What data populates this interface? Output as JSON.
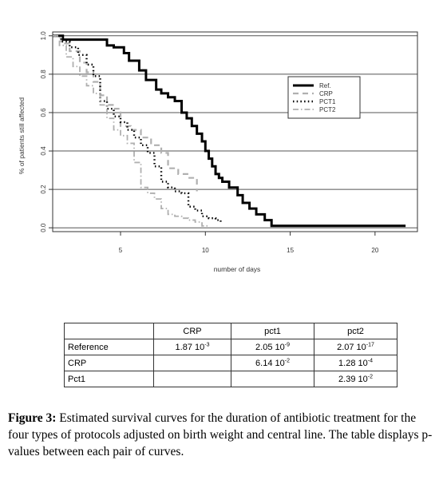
{
  "chart_data": {
    "type": "line",
    "xlabel": "number of days",
    "ylabel": "% of patients still affected",
    "xlim": [
      1,
      22.5
    ],
    "ylim": [
      -0.02,
      1.02
    ],
    "xticks": [
      5,
      10,
      15,
      20
    ],
    "yticks": [
      0.0,
      0.2,
      0.4,
      0.6,
      0.8,
      1.0
    ],
    "ytick_labels": [
      "0.0",
      "0.2",
      "0.4",
      "0.6",
      "0.8",
      "1.0"
    ],
    "grid": "horizontal",
    "legend_position": "top-right",
    "step": true,
    "series": [
      {
        "name": "Ref.",
        "style": "solid",
        "color": "#000000",
        "x": [
          1,
          1.6,
          4.2,
          4.6,
          5.2,
          5.5,
          6.1,
          6.5,
          7.1,
          7.4,
          7.8,
          8.2,
          8.6,
          8.9,
          9.2,
          9.5,
          9.8,
          10.0,
          10.2,
          10.4,
          10.6,
          10.8,
          11.0,
          11.4,
          11.9,
          12.2,
          12.6,
          13.0,
          13.5,
          13.9,
          21.8
        ],
        "y": [
          1.0,
          0.98,
          0.95,
          0.94,
          0.91,
          0.87,
          0.82,
          0.77,
          0.72,
          0.7,
          0.68,
          0.66,
          0.6,
          0.57,
          0.53,
          0.49,
          0.45,
          0.4,
          0.36,
          0.32,
          0.28,
          0.26,
          0.24,
          0.21,
          0.17,
          0.13,
          0.1,
          0.07,
          0.04,
          0.01,
          0.01
        ]
      },
      {
        "name": "CRP",
        "style": "dashed",
        "color": "#b0b0b0",
        "x": [
          1,
          1.5,
          2.0,
          2.6,
          3.0,
          3.4,
          3.8,
          4.2,
          4.6,
          5.0,
          5.6,
          6.2,
          6.8,
          7.4,
          7.8,
          8.4,
          9.0,
          9.5
        ],
        "y": [
          1.0,
          0.96,
          0.92,
          0.86,
          0.81,
          0.76,
          0.69,
          0.64,
          0.62,
          0.53,
          0.51,
          0.47,
          0.43,
          0.39,
          0.31,
          0.28,
          0.26,
          0.19
        ]
      },
      {
        "name": "PCT1",
        "style": "dotted",
        "color": "#000000",
        "x": [
          1,
          1.5,
          2.0,
          2.5,
          3.0,
          3.4,
          3.8,
          4.2,
          4.6,
          5.0,
          5.4,
          5.8,
          6.2,
          6.6,
          7.0,
          7.4,
          7.8,
          8.2,
          8.6,
          9.0,
          9.4,
          9.8,
          10.2,
          10.6,
          10.9
        ],
        "y": [
          1.0,
          0.97,
          0.94,
          0.9,
          0.85,
          0.79,
          0.66,
          0.62,
          0.58,
          0.55,
          0.51,
          0.47,
          0.43,
          0.39,
          0.32,
          0.24,
          0.21,
          0.19,
          0.18,
          0.11,
          0.09,
          0.06,
          0.05,
          0.04,
          0.02
        ]
      },
      {
        "name": "PCT2",
        "style": "dashdot",
        "color": "#b0b0b0",
        "x": [
          1,
          1.4,
          1.8,
          2.2,
          2.6,
          3.0,
          3.4,
          3.8,
          4.2,
          4.6,
          5.0,
          5.4,
          5.8,
          6.2,
          6.6,
          7.0,
          7.4,
          7.8,
          8.2,
          8.6,
          9.0,
          9.4,
          9.8,
          10.2
        ],
        "y": [
          1.0,
          0.95,
          0.89,
          0.84,
          0.79,
          0.74,
          0.7,
          0.64,
          0.57,
          0.51,
          0.48,
          0.44,
          0.34,
          0.21,
          0.18,
          0.15,
          0.1,
          0.07,
          0.06,
          0.05,
          0.04,
          0.03,
          0.01,
          0.01
        ]
      }
    ]
  },
  "table": {
    "headers": [
      "",
      "CRP",
      "pct1",
      "pct2"
    ],
    "rows": [
      {
        "label": "Reference",
        "cells": [
          {
            "base": "1.87 10",
            "exp": "-3"
          },
          {
            "base": "2.05 10",
            "exp": "-9"
          },
          {
            "base": "2.07 10",
            "exp": "-17"
          }
        ]
      },
      {
        "label": "CRP",
        "cells": [
          {
            "base": "",
            "exp": ""
          },
          {
            "base": "6.14 10",
            "exp": "-2"
          },
          {
            "base": "1.28 10",
            "exp": "-4"
          }
        ]
      },
      {
        "label": "Pct1",
        "cells": [
          {
            "base": "",
            "exp": ""
          },
          {
            "base": "",
            "exp": ""
          },
          {
            "base": "2.39 10",
            "exp": "-2"
          }
        ]
      }
    ]
  },
  "caption": {
    "label": "Figure 3:",
    "text": " Estimated survival curves for the duration of antibiotic treatment for the four types of protocols adjusted on birth weight and central line. The table displays p-values between each pair of curves."
  }
}
